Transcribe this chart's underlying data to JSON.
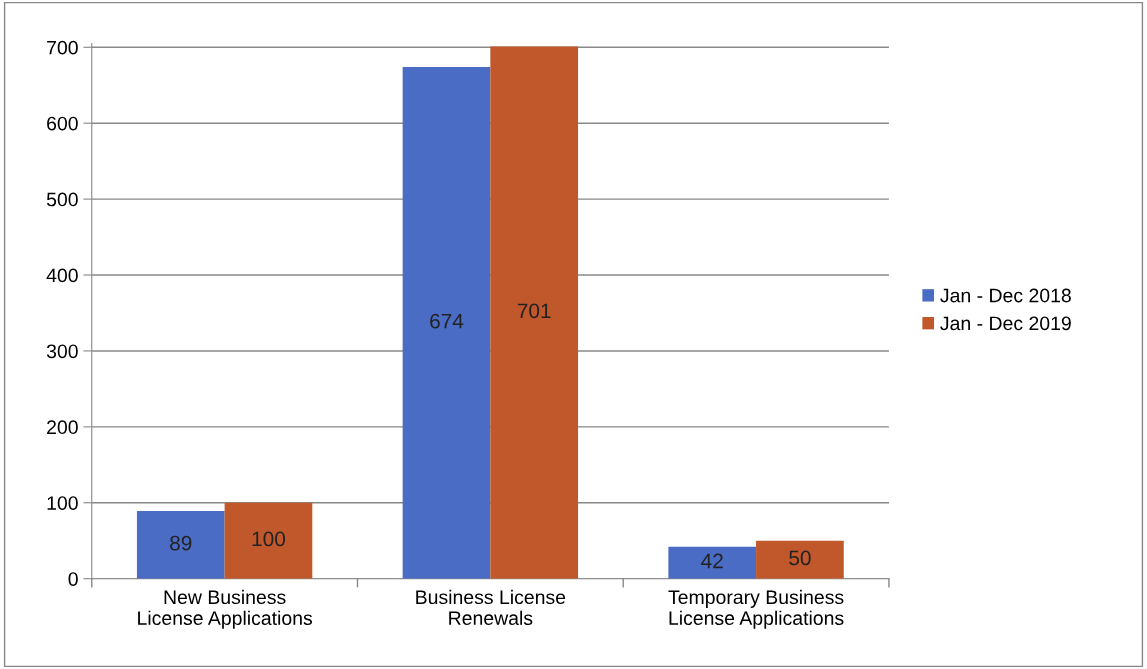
{
  "chart_data": {
    "type": "bar",
    "categories": [
      "New Business\nLicense Applications",
      "Business License\nRenewals",
      "Temporary Business\nLicense Applications"
    ],
    "series": [
      {
        "name": "Jan - Dec 2018",
        "color": "#4a6cc4",
        "values": [
          89,
          674,
          42
        ]
      },
      {
        "name": "Jan - Dec 2019",
        "color": "#c0582c",
        "values": [
          100,
          701,
          50
        ]
      }
    ],
    "ylim": [
      0,
      705
    ],
    "yticks": [
      0,
      100,
      200,
      300,
      400,
      500,
      600,
      700
    ],
    "grid": "y",
    "legend": "right",
    "data_labels": true
  }
}
